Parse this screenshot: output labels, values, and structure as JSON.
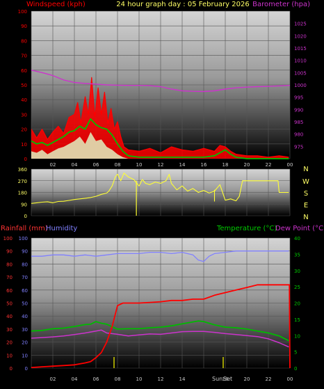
{
  "header": {
    "title": "24 hour graph day : 05 February 2026",
    "left_label": "Windspeed (kph)",
    "right_label": "Barometer (hpa)"
  },
  "colors": {
    "wind_gust": "#ff0000",
    "wind_avg": "#00c000",
    "wind_light": "#e0f0c0",
    "barometer": "#cc33cc",
    "direction": "#ffff33",
    "rain": "#ff0000",
    "humidity": "#8080ff",
    "temperature": "#00bb00",
    "dew_point": "#cc33cc",
    "sun_marker": "#cccc00",
    "axis_left_top": "#ff0000",
    "axis_right_top": "#cc33cc",
    "axis_rain": "#ff3333",
    "axis_humidity": "#8080ff",
    "axis_temp": "#00cc00",
    "axis_dew": "#cc33cc"
  },
  "x_ticks": [
    "02",
    "04",
    "06",
    "08",
    "10",
    "12",
    "14",
    "16",
    "18",
    "20",
    "22",
    "00"
  ],
  "bottom_x_ticks": [
    "02",
    "04",
    "06",
    "08",
    "10",
    "12",
    "14",
    "16",
    "18",
    "20",
    "22",
    "00"
  ],
  "sunrise_label": "Sun",
  "sunset_label": "Set",
  "compass_labels": [
    "N",
    "W",
    "S",
    "E",
    "N"
  ],
  "chart_data": [
    {
      "id": "wind",
      "type": "line",
      "xlabel": "",
      "ylabel": "Windspeed (kph)",
      "ylim": [
        0,
        100
      ],
      "yticks": [
        "0",
        "10",
        "20",
        "30",
        "40",
        "50",
        "60",
        "70",
        "80",
        "90",
        "100"
      ],
      "y2label": "Barometer (hpa)",
      "y2lim": [
        970,
        1030
      ],
      "y2ticks": [
        "975",
        "980",
        "985",
        "990",
        "995",
        "1000",
        "1005",
        "1010",
        "1015",
        "1020",
        "1025"
      ],
      "series": [
        {
          "role": "gust",
          "x": [
            0.0,
            0.5,
            1.0,
            1.5,
            2.0,
            2.5,
            3.0,
            3.5,
            4.0,
            4.3,
            4.6,
            5.0,
            5.3,
            5.6,
            5.9,
            6.2,
            6.5,
            6.8,
            7.1,
            7.4,
            7.7,
            8.0,
            8.3,
            8.6,
            9.0,
            10.0,
            11.0,
            12.0,
            13.0,
            14.0,
            15.0,
            16.0,
            17.0,
            17.5,
            18.0,
            18.5,
            19.0,
            20.0,
            21.0,
            22.0,
            23.0,
            23.9
          ],
          "values": [
            20,
            14,
            20,
            13,
            18,
            22,
            17,
            28,
            30,
            38,
            24,
            42,
            30,
            55,
            28,
            48,
            30,
            45,
            24,
            34,
            20,
            25,
            15,
            8,
            6,
            5,
            7,
            4,
            8,
            6,
            5,
            7,
            5,
            9,
            8,
            5,
            3,
            2,
            2,
            1,
            2,
            1
          ]
        },
        {
          "role": "average",
          "x": [
            0.0,
            0.5,
            1.0,
            1.5,
            2.0,
            2.5,
            3.0,
            3.5,
            4.0,
            4.5,
            5.0,
            5.5,
            6.0,
            6.5,
            7.0,
            7.5,
            8.0,
            8.5,
            9.0,
            10.0,
            12.0,
            14.0,
            16.0,
            17.0,
            18.0,
            18.5,
            19.0,
            20.0,
            22.0,
            23.9
          ],
          "values": [
            12,
            10,
            11,
            9,
            11,
            13,
            15,
            18,
            19,
            22,
            20,
            27,
            23,
            21,
            20,
            16,
            10,
            5,
            2,
            1,
            1,
            1,
            1,
            2,
            6,
            3,
            1,
            0,
            0,
            0
          ]
        },
        {
          "role": "light",
          "x": [
            0.0,
            0.5,
            1.0,
            1.5,
            2.0,
            2.5,
            3.0,
            3.5,
            4.0,
            4.5,
            5.0,
            5.5,
            6.0,
            6.5,
            7.0,
            7.5,
            8.0,
            8.5,
            9.0,
            10.0,
            12.0,
            14.0,
            16.0,
            18.0,
            20.0,
            23.9
          ],
          "values": [
            5,
            4,
            6,
            3,
            5,
            7,
            8,
            10,
            12,
            15,
            10,
            18,
            12,
            13,
            8,
            6,
            3,
            1,
            0,
            0,
            0,
            0,
            0,
            0,
            0,
            0
          ]
        },
        {
          "role": "barometer",
          "axis": "y2",
          "x": [
            0.0,
            1.0,
            2.0,
            3.0,
            4.0,
            5.0,
            6.0,
            7.0,
            8.0,
            9.0,
            10.0,
            11.0,
            12.0,
            13.0,
            14.0,
            15.0,
            16.0,
            17.0,
            18.0,
            19.0,
            20.0,
            21.0,
            22.0,
            23.0,
            24.0
          ],
          "values": [
            1006.0,
            1005.0,
            1003.8,
            1002.0,
            1001.0,
            1000.6,
            1000.3,
            1000.0,
            999.9,
            999.8,
            999.8,
            999.7,
            999.3,
            998.3,
            997.6,
            997.4,
            997.3,
            997.6,
            998.3,
            998.8,
            999.1,
            999.3,
            999.4,
            999.6,
            999.8
          ]
        }
      ]
    },
    {
      "id": "direction",
      "type": "line",
      "xlabel": "",
      "ylabel": "",
      "ylim": [
        0,
        360
      ],
      "yticks": [
        "0",
        "90",
        "180",
        "270",
        "360"
      ],
      "series": [
        {
          "role": "direction",
          "x": [
            0.0,
            0.5,
            1.0,
            1.5,
            2.0,
            2.5,
            3.0,
            3.5,
            4.0,
            4.5,
            5.0,
            5.5,
            6.0,
            6.5,
            7.0,
            7.2,
            7.5,
            7.8,
            8.0,
            8.3,
            8.6,
            9.0,
            9.5,
            10.0,
            10.3,
            10.6,
            11.0,
            11.5,
            12.0,
            12.5,
            12.8,
            13.0,
            13.5,
            14.0,
            14.5,
            15.0,
            15.5,
            16.0,
            16.5,
            17.0,
            17.5,
            18.0,
            18.5,
            19.0,
            19.3,
            19.6,
            20.0,
            21.0,
            22.0,
            22.9,
            23.0,
            23.9
          ],
          "values": [
            95,
            100,
            105,
            108,
            100,
            110,
            112,
            118,
            125,
            130,
            135,
            140,
            150,
            165,
            175,
            190,
            230,
            300,
            320,
            270,
            330,
            300,
            280,
            230,
            280,
            250,
            240,
            260,
            250,
            270,
            320,
            250,
            200,
            230,
            190,
            210,
            180,
            195,
            175,
            190,
            240,
            120,
            130,
            115,
            150,
            270,
            270,
            270,
            270,
            270,
            180,
            180
          ]
        }
      ]
    },
    {
      "id": "rain-humidity-temp",
      "type": "line",
      "xlabel": "",
      "ylabel": "Rainfall (mm)",
      "ylim": [
        0,
        100
      ],
      "yticks": [
        "0",
        "10",
        "20",
        "30",
        "40",
        "50",
        "60",
        "70",
        "80",
        "90",
        "100"
      ],
      "y2label": "Temperature (°C)",
      "y2lim": [
        0,
        40
      ],
      "y2ticks": [
        "0",
        "5",
        "10",
        "15",
        "20",
        "25",
        "30",
        "35",
        "40"
      ],
      "series_labels": [
        "Rainfall (mm)",
        "Humidity",
        "Temperature (°C)",
        "Dew Point (°C)"
      ],
      "series": [
        {
          "role": "humidity",
          "x": [
            0.0,
            1.0,
            2.0,
            3.0,
            4.0,
            5.0,
            6.0,
            7.0,
            8.0,
            9.0,
            10.0,
            11.0,
            12.0,
            13.0,
            14.0,
            15.0,
            15.5,
            16.0,
            16.5,
            17.0,
            18.0,
            19.0,
            20.0,
            21.0,
            22.0,
            23.0,
            23.9
          ],
          "values": [
            86,
            86,
            87,
            87,
            86,
            87,
            86,
            87,
            88,
            88,
            88,
            89,
            89,
            88,
            89,
            87,
            83,
            82,
            86,
            88,
            89,
            90,
            90,
            90,
            90,
            90,
            90
          ]
        },
        {
          "role": "temperature",
          "x": [
            0.0,
            1.0,
            2.0,
            3.0,
            4.0,
            5.0,
            5.5,
            6.0,
            6.5,
            7.0,
            7.5,
            8.0,
            9.0,
            10.0,
            11.0,
            12.0,
            13.0,
            14.0,
            15.0,
            15.5,
            16.0,
            16.5,
            17.0,
            18.0,
            19.0,
            20.0,
            21.0,
            22.0,
            23.0,
            23.9
          ],
          "values": [
            11.4,
            11.6,
            12.1,
            12.3,
            12.8,
            13.4,
            13.5,
            14.3,
            13.8,
            13.5,
            12.7,
            12.0,
            12.1,
            12.1,
            12.4,
            12.6,
            13.0,
            13.6,
            14.2,
            14.5,
            14.3,
            13.8,
            13.3,
            12.6,
            12.4,
            12.0,
            11.4,
            10.8,
            9.9,
            8.4
          ]
        },
        {
          "role": "dew_point",
          "x": [
            0.0,
            1.0,
            2.0,
            3.0,
            4.0,
            5.0,
            6.0,
            6.5,
            7.0,
            8.0,
            9.0,
            10.0,
            11.0,
            12.0,
            13.0,
            14.0,
            15.0,
            16.0,
            17.0,
            18.0,
            19.0,
            20.0,
            21.0,
            22.0,
            23.0,
            23.9
          ],
          "values": [
            9.2,
            9.4,
            9.6,
            9.9,
            10.3,
            10.8,
            11.4,
            11.7,
            10.8,
            10.4,
            9.9,
            10.2,
            10.5,
            10.4,
            10.8,
            11.2,
            11.3,
            11.3,
            11.0,
            10.6,
            10.3,
            10.0,
            9.7,
            9.0,
            7.8,
            6.5
          ]
        },
        {
          "role": "rainfall",
          "x": [
            0.0,
            1.0,
            2.0,
            3.0,
            4.0,
            5.0,
            5.5,
            6.0,
            6.5,
            7.0,
            7.5,
            8.0,
            8.5,
            9.0,
            10.0,
            11.0,
            12.0,
            13.0,
            14.0,
            15.0,
            16.0,
            17.0,
            18.0,
            19.0,
            20.0,
            21.0,
            22.0,
            23.0,
            23.95,
            24.0
          ],
          "values": [
            0.5,
            1,
            1.5,
            2,
            2.5,
            4,
            5,
            8,
            12,
            20,
            32,
            48,
            50,
            50,
            50,
            50.5,
            51,
            52,
            52,
            53,
            53,
            56,
            58,
            60,
            62,
            64,
            64,
            64,
            64,
            0
          ]
        }
      ]
    }
  ]
}
